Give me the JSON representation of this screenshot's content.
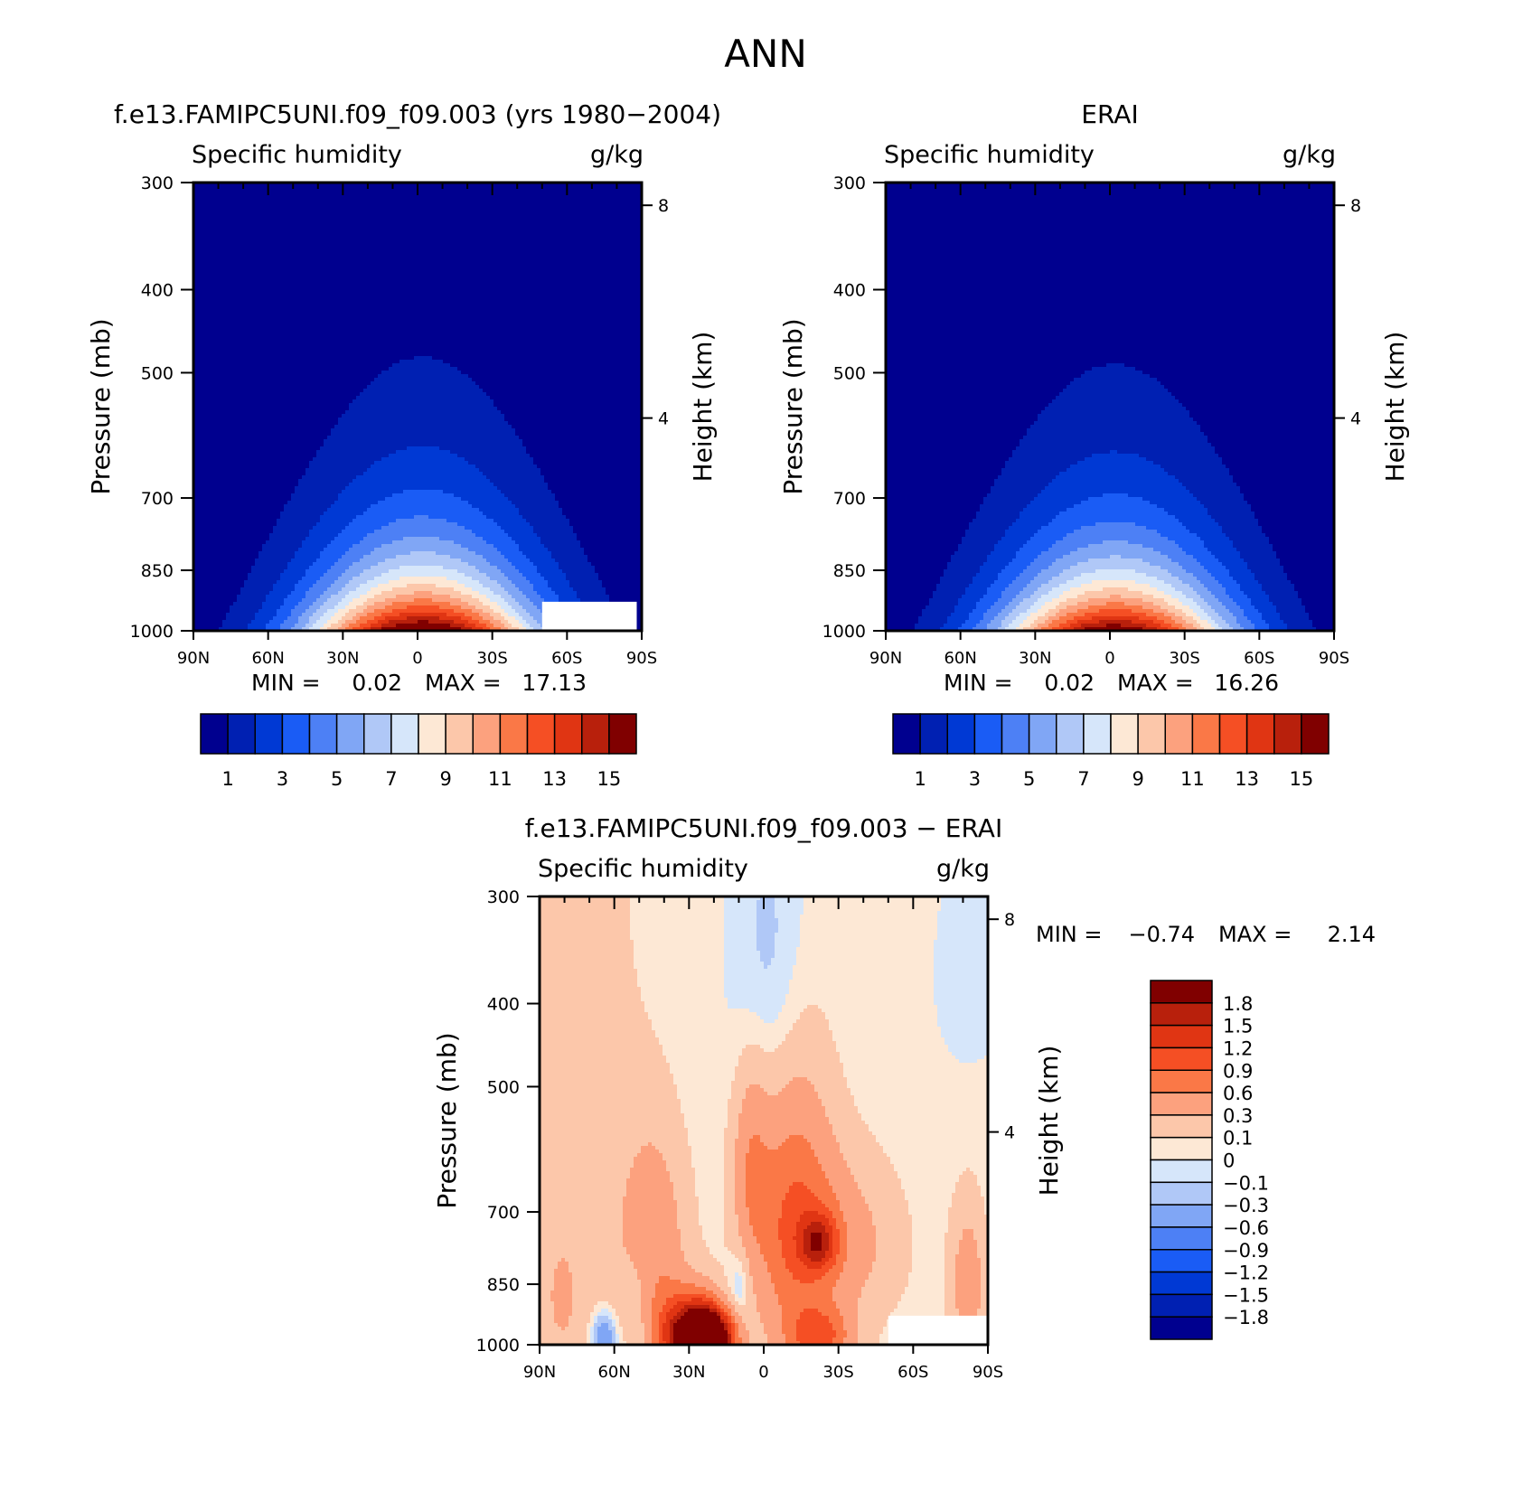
{
  "page": {
    "title": "ANN"
  },
  "chart_data": [
    {
      "type": "heatmap",
      "id": "model",
      "title": "f.e13.FAMIPC5UNI.f09_f09.003 (yrs 1980-2004)",
      "variable": "Specific humidity",
      "units": "g/kg",
      "xlabel": "",
      "ylabel": "Pressure (mb)",
      "ylabel_right": "Height (km)",
      "x_ticks": [
        "90N",
        "60N",
        "30N",
        "0",
        "30S",
        "60S",
        "90S"
      ],
      "xlim": [
        90,
        -90
      ],
      "y_ticks": [
        300,
        400,
        500,
        700,
        850,
        1000
      ],
      "ylim": [
        1000,
        300
      ],
      "height_ticks": [
        8,
        4
      ],
      "stats": {
        "min_label": "MIN =",
        "min": "0.02",
        "max_label": "MAX =",
        "max": "17.13"
      },
      "peak": 17.13,
      "colorbar": {
        "orientation": "horizontal",
        "levels": [
          1,
          2,
          3,
          4,
          5,
          6,
          7,
          8,
          9,
          10,
          11,
          12,
          13,
          14,
          15
        ],
        "tick_labels": [
          "1",
          "3",
          "5",
          "7",
          "9",
          "11",
          "13",
          "15"
        ],
        "colors": [
          "#00008f",
          "#0020b2",
          "#0039d4",
          "#1a5cf5",
          "#4d80f5",
          "#80a6f5",
          "#b0c8f7",
          "#d6e6fa",
          "#fde8d5",
          "#fcc7aa",
          "#fca17e",
          "#fa7847",
          "#f54f24",
          "#e03513",
          "#b8200c",
          "#800000"
        ]
      },
      "masked_region": {
        "lat_start": -50,
        "lat_end": -88,
        "p_top": 925,
        "p_bottom": 1000
      }
    },
    {
      "type": "heatmap",
      "id": "obs",
      "title": "ERAI",
      "variable": "Specific humidity",
      "units": "g/kg",
      "xlabel": "",
      "ylabel": "Pressure (mb)",
      "ylabel_right": "Height (km)",
      "x_ticks": [
        "90N",
        "60N",
        "30N",
        "0",
        "30S",
        "60S",
        "90S"
      ],
      "xlim": [
        90,
        -90
      ],
      "y_ticks": [
        300,
        400,
        500,
        700,
        850,
        1000
      ],
      "ylim": [
        1000,
        300
      ],
      "height_ticks": [
        8,
        4
      ],
      "stats": {
        "min_label": "MIN =",
        "min": "0.02",
        "max_label": "MAX =",
        "max": "16.26"
      },
      "peak": 16.26,
      "colorbar": {
        "orientation": "horizontal",
        "levels": [
          1,
          2,
          3,
          4,
          5,
          6,
          7,
          8,
          9,
          10,
          11,
          12,
          13,
          14,
          15
        ],
        "tick_labels": [
          "1",
          "3",
          "5",
          "7",
          "9",
          "11",
          "13",
          "15"
        ],
        "colors": [
          "#00008f",
          "#0020b2",
          "#0039d4",
          "#1a5cf5",
          "#4d80f5",
          "#80a6f5",
          "#b0c8f7",
          "#d6e6fa",
          "#fde8d5",
          "#fcc7aa",
          "#fca17e",
          "#fa7847",
          "#f54f24",
          "#e03513",
          "#b8200c",
          "#800000"
        ]
      }
    },
    {
      "type": "heatmap",
      "id": "diff",
      "title": "f.e13.FAMIPC5UNI.f09_f09.003 - ERAI",
      "variable": "Specific humidity",
      "units": "g/kg",
      "xlabel": "",
      "ylabel": "Pressure (mb)",
      "ylabel_right": "Height (km)",
      "x_ticks": [
        "90N",
        "60N",
        "30N",
        "0",
        "30S",
        "60S",
        "90S"
      ],
      "xlim": [
        90,
        -90
      ],
      "y_ticks": [
        300,
        400,
        500,
        700,
        850,
        1000
      ],
      "ylim": [
        1000,
        300
      ],
      "height_ticks": [
        8,
        4
      ],
      "stats": {
        "min_label": "MIN =",
        "min": "-0.74",
        "max_label": "MAX =",
        "max": "2.14"
      },
      "colorbar": {
        "orientation": "vertical",
        "levels": [
          -1.8,
          -1.5,
          -1.2,
          -0.9,
          -0.6,
          -0.3,
          -0.1,
          0,
          0.1,
          0.3,
          0.6,
          0.9,
          1.2,
          1.5,
          1.8
        ],
        "tick_labels": [
          "1.8",
          "1.5",
          "1.2",
          "0.9",
          "0.6",
          "0.3",
          "0.1",
          "0",
          "-0.1",
          "-0.3",
          "-0.6",
          "-0.9",
          "-1.2",
          "-1.5",
          "-1.8"
        ],
        "colors": [
          "#00008f",
          "#0020b2",
          "#0039d4",
          "#1a5cf5",
          "#4d80f5",
          "#80a6f5",
          "#b0c8f7",
          "#d6e6fa",
          "#fde8d5",
          "#fcc7aa",
          "#fca17e",
          "#fa7847",
          "#f54f24",
          "#e03513",
          "#b8200c",
          "#800000"
        ]
      },
      "features": [
        {
          "lat": 75,
          "p": 580,
          "value": 0.15,
          "width": 20,
          "depth": 520
        },
        {
          "lat": 45,
          "p": 760,
          "value": 0.5,
          "width": 9,
          "depth": 140
        },
        {
          "lat": 32,
          "p": 975,
          "value": 1.6,
          "width": 8,
          "depth": 75
        },
        {
          "lat": 24,
          "p": 985,
          "value": 2.0,
          "width": 6,
          "depth": 55
        },
        {
          "lat": 18,
          "p": 980,
          "value": 1.3,
          "width": 6,
          "depth": 60
        },
        {
          "lat": 5,
          "p": 620,
          "value": 0.45,
          "width": 5,
          "depth": 110
        },
        {
          "lat": -12,
          "p": 720,
          "value": 0.8,
          "width": 11,
          "depth": 170
        },
        {
          "lat": -22,
          "p": 760,
          "value": 1.0,
          "width": 5,
          "depth": 40
        },
        {
          "lat": -22,
          "p": 980,
          "value": 0.9,
          "width": 9,
          "depth": 55
        },
        {
          "lat": -30,
          "p": 760,
          "value": 0.4,
          "width": 16,
          "depth": 110
        },
        {
          "lat": -82,
          "p": 850,
          "value": 0.45,
          "width": 5,
          "depth": 120
        },
        {
          "lat": 81,
          "p": 880,
          "value": 0.4,
          "width": 3,
          "depth": 60
        },
        {
          "lat": 51,
          "p": 890,
          "value": -0.2,
          "width": 4,
          "depth": 120
        },
        {
          "lat": 10,
          "p": 880,
          "value": -0.3,
          "width": 3,
          "depth": 70
        },
        {
          "lat": 17,
          "p": 920,
          "value": -0.25,
          "width": 3,
          "depth": 50
        },
        {
          "lat": 64,
          "p": 985,
          "value": -0.7,
          "width": 3,
          "depth": 45
        },
        {
          "lat": -2,
          "p": 370,
          "value": -0.2,
          "width": 10,
          "depth": 110
        },
        {
          "lat": -82,
          "p": 370,
          "value": -0.1,
          "width": 8,
          "depth": 60
        }
      ],
      "masked_region": {
        "lat_start": -50,
        "lat_end": -90,
        "p_top": 925,
        "p_bottom": 1000
      }
    }
  ]
}
